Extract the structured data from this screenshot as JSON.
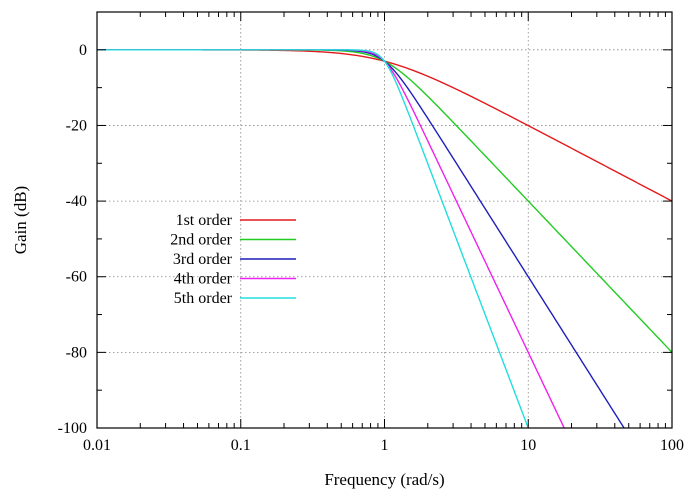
{
  "chart_data": {
    "type": "line",
    "title": "",
    "xlabel": "Frequency (rad/s)",
    "ylabel": "Gain (dB)",
    "xscale": "log",
    "xlim": [
      0.01,
      100
    ],
    "ylim": [
      -100,
      10
    ],
    "x_ticks": [
      0.01,
      0.1,
      1,
      10,
      100
    ],
    "x_tick_labels": [
      "0.01",
      "0.1",
      "1",
      "10",
      "100"
    ],
    "y_ticks": [
      0,
      -20,
      -40,
      -60,
      -80,
      -100
    ],
    "y_tick_labels": [
      "0",
      "-20",
      "-40",
      "-60",
      "-80",
      "-100"
    ],
    "grid": true,
    "legend_position": "middle-left",
    "series": [
      {
        "name": "1st order",
        "order": 1,
        "color": "#e41a1c",
        "x": [
          0.01,
          0.1,
          0.3,
          0.5,
          0.7,
          1,
          1.5,
          2,
          3,
          5,
          10,
          20,
          50,
          100
        ],
        "y": [
          0,
          -0.04,
          -0.37,
          -0.97,
          -1.74,
          -3.01,
          -5.12,
          -6.99,
          -10,
          -14.15,
          -20.04,
          -26.03,
          -33.98,
          -40
        ]
      },
      {
        "name": "2nd order",
        "order": 2,
        "color": "#22cc22",
        "x": [
          0.01,
          0.1,
          0.3,
          0.5,
          0.7,
          1,
          1.5,
          2,
          3,
          5,
          10,
          20,
          50,
          100
        ],
        "y": [
          0,
          0,
          -0.04,
          -0.26,
          -0.92,
          -3.01,
          -7.46,
          -12.3,
          -19.1,
          -27.96,
          -40,
          -52.04,
          -67.96,
          -80
        ]
      },
      {
        "name": "3rd order",
        "order": 3,
        "color": "#1f1fbb",
        "x": [
          0.01,
          0.1,
          0.3,
          0.5,
          0.7,
          1,
          1.5,
          2,
          3,
          5,
          10,
          20,
          44.6
        ],
        "y": [
          0,
          0,
          0,
          -0.07,
          -0.45,
          -3.01,
          -10.9,
          -18.1,
          -28.6,
          -41.9,
          -60,
          -78.1,
          -99
        ]
      },
      {
        "name": "4th order",
        "order": 4,
        "color": "#ee22ee",
        "x": [
          0.01,
          0.1,
          0.3,
          0.5,
          0.7,
          1,
          1.5,
          2,
          3,
          5,
          10,
          17.6
        ],
        "y": [
          0,
          0,
          0,
          -0.02,
          -0.22,
          -3.01,
          -14.3,
          -24.1,
          -38.2,
          -55.9,
          -80,
          -99.8
        ]
      },
      {
        "name": "5th order",
        "order": 5,
        "color": "#22dddd",
        "x": [
          0.01,
          0.1,
          0.3,
          0.5,
          0.7,
          1,
          1.5,
          2,
          3,
          5,
          9.8
        ],
        "y": [
          0,
          0,
          0,
          0,
          -0.11,
          -3.01,
          -17.7,
          -30.1,
          -47.7,
          -69.9,
          -99.1
        ]
      }
    ]
  }
}
